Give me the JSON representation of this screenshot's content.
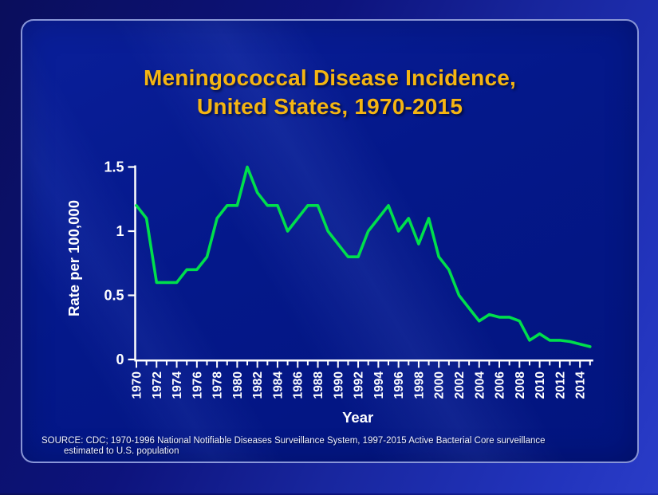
{
  "slide": {
    "title_line1": "Meningococcal Disease Incidence,",
    "title_line2": "United States, 1970-2015",
    "source_line1": "SOURCE: CDC; 1970-1996 National Notifiable Diseases Surveillance System, 1997-2015 Active Bacterial Core surveillance",
    "source_line2": "estimated to U.S. population"
  },
  "colors": {
    "title_text": "#F5B512",
    "line": "#00DF4C",
    "axis_text": "#FFFFFF",
    "axis_line": "#FFFFFF",
    "panel_background": "#04188A",
    "panel_border": "#A0ACE4"
  },
  "chart_data": {
    "type": "line",
    "title": "Meningococcal Disease Incidence, United States, 1970-2015",
    "xlabel": "Year",
    "ylabel": "Rate per 100,000",
    "legend_position": "none",
    "grid": false,
    "ylim": [
      0,
      1.5
    ],
    "yticks": [
      0,
      0.5,
      1,
      1.5
    ],
    "ytick_labels": [
      "0",
      "0.5",
      "1",
      "1.5"
    ],
    "xtick_labels": [
      "1970",
      "1972",
      "1974",
      "1976",
      "1978",
      "1980",
      "1982",
      "1984",
      "1986",
      "1988",
      "1990",
      "1992",
      "1994",
      "1996",
      "1998",
      "2000",
      "2002",
      "2004",
      "2006",
      "2008",
      "2010",
      "2012",
      "2014"
    ],
    "x": [
      1970,
      1971,
      1972,
      1973,
      1974,
      1975,
      1976,
      1977,
      1978,
      1979,
      1980,
      1981,
      1982,
      1983,
      1984,
      1985,
      1986,
      1987,
      1988,
      1989,
      1990,
      1991,
      1992,
      1993,
      1994,
      1995,
      1996,
      1997,
      1998,
      1999,
      2000,
      2001,
      2002,
      2003,
      2004,
      2005,
      2006,
      2007,
      2008,
      2009,
      2010,
      2011,
      2012,
      2013,
      2014,
      2015
    ],
    "series": [
      {
        "name": "Rate per 100,000",
        "values": [
          1.2,
          1.1,
          0.6,
          0.6,
          0.6,
          0.7,
          0.7,
          0.8,
          1.1,
          1.2,
          1.2,
          1.5,
          1.3,
          1.2,
          1.2,
          1.0,
          1.1,
          1.2,
          1.2,
          1.0,
          0.9,
          0.8,
          0.8,
          1.0,
          1.1,
          1.2,
          1.0,
          1.1,
          0.9,
          1.1,
          0.8,
          0.7,
          0.5,
          0.4,
          0.3,
          0.35,
          0.33,
          0.33,
          0.3,
          0.15,
          0.2,
          0.15,
          0.15,
          0.14,
          0.12,
          0.1
        ]
      }
    ]
  }
}
